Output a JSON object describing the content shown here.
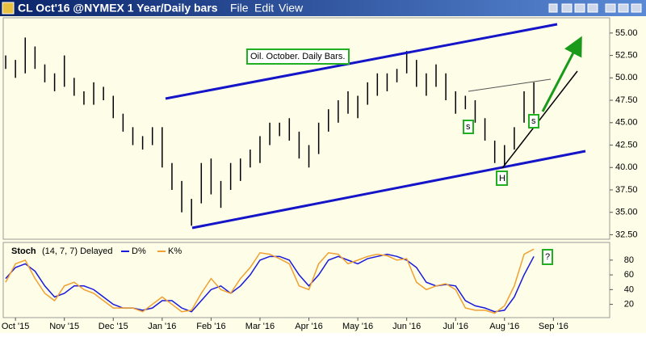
{
  "window": {
    "title": "CL Oct'16 @NYMEX  1 Year/Daily bars",
    "menu": [
      "File",
      "Edit",
      "View"
    ]
  },
  "chart_data": [
    {
      "type": "ohlc",
      "annotations": [
        "Oil. October. Daily Bars.",
        "s",
        "s",
        "H"
      ],
      "x": [
        -0.2,
        0,
        0.2,
        0.4,
        0.6,
        0.8,
        1,
        1.2,
        1.4,
        1.6,
        1.8,
        2,
        2.2,
        2.4,
        2.6,
        2.8,
        3,
        3.2,
        3.4,
        3.6,
        3.8,
        4,
        4.2,
        4.4,
        4.6,
        4.8,
        5,
        5.2,
        5.4,
        5.6,
        5.8,
        6,
        6.2,
        6.4,
        6.6,
        6.8,
        7,
        7.2,
        7.4,
        7.6,
        7.8,
        8,
        8.2,
        8.4,
        8.6,
        8.8,
        9,
        9.2,
        9.4,
        9.6,
        9.8,
        10,
        10.2,
        10.4,
        10.6
      ],
      "low": [
        51,
        50,
        50.5,
        51,
        49.5,
        48.5,
        49,
        48,
        47,
        47,
        47.5,
        45.5,
        44,
        42.5,
        42,
        42.5,
        40,
        37.5,
        35,
        33.5,
        36,
        37,
        35.5,
        37.5,
        38.5,
        40,
        40.5,
        42.5,
        43.5,
        43,
        41,
        40,
        41.5,
        44,
        45,
        46,
        45.5,
        47,
        48,
        48.5,
        49.5,
        50.5,
        49,
        48,
        49,
        47.5,
        46,
        46.5,
        45,
        43,
        40.5,
        40,
        42,
        45,
        46
      ],
      "high": [
        52.5,
        52,
        54.5,
        53.5,
        51.5,
        50.5,
        52.5,
        50,
        48.5,
        49.5,
        49,
        48,
        46,
        44.5,
        43.5,
        44.5,
        44.5,
        40.5,
        38.5,
        36.5,
        40.5,
        41,
        38.5,
        40.5,
        41,
        42,
        43.5,
        45,
        45,
        45.5,
        44,
        42.5,
        45,
        46.5,
        47.5,
        48.5,
        48,
        49.5,
        50.5,
        50.5,
        51,
        53,
        52,
        50.5,
        51.5,
        50.5,
        48.5,
        48,
        47.5,
        45.5,
        43,
        42.5,
        44.5,
        48.5,
        49.5
      ],
      "color": "#000000",
      "xlim": [
        -0.25,
        12.15
      ],
      "ylim": [
        32.0,
        56.7
      ],
      "yticks": [
        {
          "value": 32.5,
          "label": "32.50"
        },
        {
          "value": 35,
          "label": "35.00"
        },
        {
          "value": 37.5,
          "label": "37.50"
        },
        {
          "value": 40,
          "label": "40.00"
        },
        {
          "value": 42.5,
          "label": "42.50"
        },
        {
          "value": 45,
          "label": "45.00"
        },
        {
          "value": 47.5,
          "label": "47.50"
        },
        {
          "value": 50,
          "label": "50.00"
        },
        {
          "value": 52.5,
          "label": "52.50"
        },
        {
          "value": 55,
          "label": "55.00"
        }
      ]
    },
    {
      "type": "line",
      "title": "Stoch",
      "subtitle": "(14, 7, 7) Delayed",
      "annotations": [
        "?"
      ],
      "x": [
        -0.2,
        0,
        0.2,
        0.4,
        0.6,
        0.8,
        1,
        1.2,
        1.4,
        1.6,
        1.8,
        2,
        2.2,
        2.4,
        2.6,
        2.8,
        3,
        3.2,
        3.4,
        3.6,
        3.8,
        4,
        4.2,
        4.4,
        4.6,
        4.8,
        5,
        5.2,
        5.4,
        5.6,
        5.8,
        6,
        6.2,
        6.4,
        6.6,
        6.8,
        7,
        7.2,
        7.4,
        7.6,
        7.8,
        8,
        8.2,
        8.4,
        8.6,
        8.8,
        9,
        9.2,
        9.4,
        9.6,
        9.8,
        10,
        10.2,
        10.4,
        10.6
      ],
      "series": [
        {
          "name": "D%",
          "color": "#1a1adb",
          "values": [
            55,
            70,
            75,
            65,
            45,
            30,
            35,
            45,
            45,
            40,
            30,
            20,
            15,
            15,
            12,
            15,
            25,
            25,
            15,
            10,
            25,
            40,
            45,
            35,
            45,
            60,
            80,
            85,
            85,
            80,
            60,
            45,
            60,
            80,
            85,
            80,
            75,
            82,
            85,
            88,
            85,
            80,
            70,
            50,
            45,
            47,
            45,
            25,
            18,
            15,
            10,
            12,
            30,
            60,
            85
          ]
        },
        {
          "name": "K%",
          "color": "#f0a030",
          "values": [
            50,
            75,
            80,
            55,
            35,
            25,
            45,
            50,
            40,
            35,
            25,
            15,
            15,
            15,
            10,
            20,
            30,
            20,
            10,
            12,
            35,
            55,
            40,
            35,
            55,
            70,
            90,
            88,
            82,
            75,
            45,
            40,
            75,
            90,
            88,
            75,
            80,
            85,
            88,
            86,
            80,
            82,
            50,
            40,
            45,
            48,
            40,
            15,
            12,
            12,
            8,
            18,
            45,
            88,
            95
          ]
        }
      ],
      "xlim": [
        -0.25,
        12.15
      ],
      "ylim": [
        2,
        104
      ],
      "yticks": [
        20,
        40,
        60,
        80
      ],
      "xticks": [
        {
          "value": 0,
          "label": "Oct '15"
        },
        {
          "value": 1,
          "label": "Nov '15"
        },
        {
          "value": 2,
          "label": "Dec '15"
        },
        {
          "value": 3,
          "label": "Jan '16"
        },
        {
          "value": 4,
          "label": "Feb '16"
        },
        {
          "value": 5,
          "label": "Mar '16"
        },
        {
          "value": 6,
          "label": "Apr '16"
        },
        {
          "value": 7,
          "label": "May '16"
        },
        {
          "value": 8,
          "label": "Jun '16"
        },
        {
          "value": 9,
          "label": "Jul '16"
        },
        {
          "value": 10,
          "label": "Aug '16"
        },
        {
          "value": 11,
          "label": "Sep '16"
        }
      ]
    }
  ]
}
